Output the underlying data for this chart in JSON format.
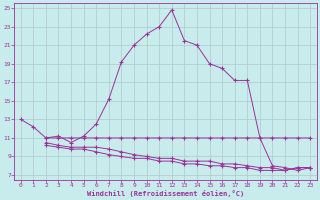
{
  "xlabel": "Windchill (Refroidissement éolien,°C)",
  "ylabel": "",
  "bg_color": "#c8ecec",
  "grid_color": "#b0c8c8",
  "line_color": "#993399",
  "xlim": [
    -0.5,
    23.5
  ],
  "ylim": [
    6.5,
    25.5
  ],
  "xticks": [
    0,
    1,
    2,
    3,
    4,
    5,
    6,
    7,
    8,
    9,
    10,
    11,
    12,
    13,
    14,
    15,
    16,
    17,
    18,
    19,
    20,
    21,
    22,
    23
  ],
  "yticks": [
    7,
    9,
    11,
    13,
    15,
    17,
    19,
    21,
    23,
    25
  ],
  "curve1_x": [
    0,
    1,
    2,
    3,
    4,
    5,
    6,
    7,
    8,
    9,
    10,
    11,
    12,
    13,
    14,
    15,
    16,
    17,
    18,
    19,
    20,
    21,
    22,
    23
  ],
  "curve1_y": [
    13.0,
    12.2,
    11.0,
    11.2,
    10.5,
    11.2,
    12.5,
    15.2,
    19.2,
    21.0,
    22.2,
    23.0,
    24.8,
    21.5,
    21.0,
    19.0,
    18.5,
    17.2,
    17.2,
    11.0,
    11.0,
    11.0,
    11.0,
    11.0
  ],
  "curve2_x": [
    2,
    3,
    4,
    5,
    6,
    7,
    8,
    9,
    10,
    11,
    12,
    13,
    14,
    15,
    16,
    17,
    18,
    19,
    20,
    21,
    22,
    23
  ],
  "curve2_y": [
    11.0,
    11.0,
    11.0,
    11.0,
    11.0,
    11.0,
    11.0,
    11.0,
    11.0,
    11.0,
    11.0,
    11.0,
    11.0,
    11.0,
    11.0,
    11.0,
    11.0,
    11.0,
    8.0,
    7.8,
    7.5,
    7.8
  ],
  "curve3_x": [
    2,
    3,
    4,
    5,
    6,
    7,
    8,
    9,
    10,
    11,
    12,
    13,
    14,
    15,
    16,
    17,
    18,
    19,
    20,
    21,
    22,
    23
  ],
  "curve3_y": [
    10.5,
    10.2,
    10.0,
    10.0,
    10.0,
    9.8,
    9.5,
    9.2,
    9.0,
    8.8,
    8.8,
    8.5,
    8.5,
    8.5,
    8.2,
    8.2,
    8.0,
    7.8,
    7.8,
    7.5,
    7.8,
    7.8
  ],
  "curve4_x": [
    2,
    3,
    4,
    5,
    6,
    7,
    8,
    9,
    10,
    11,
    12,
    13,
    14,
    15,
    16,
    17,
    18,
    19,
    20,
    21,
    22,
    23
  ],
  "curve4_y": [
    10.2,
    10.0,
    9.8,
    9.8,
    9.5,
    9.2,
    9.0,
    8.8,
    8.8,
    8.5,
    8.5,
    8.2,
    8.2,
    8.0,
    8.0,
    7.8,
    7.8,
    7.5,
    7.5,
    7.5,
    7.8,
    7.8
  ]
}
